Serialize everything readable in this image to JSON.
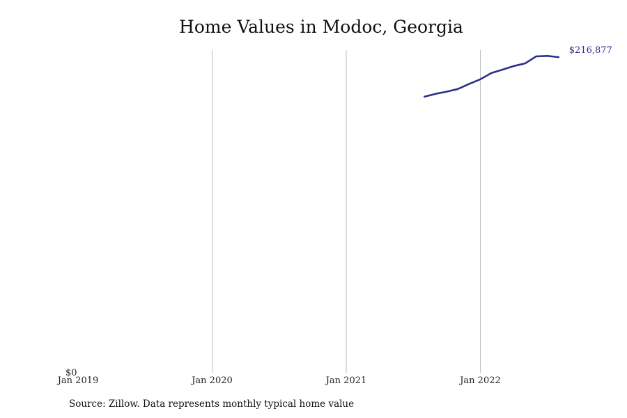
{
  "chart_data": {
    "type": "line",
    "title": "Home Values in Modoc, Georgia",
    "xlabel": "",
    "ylabel": "",
    "x_ticks": [
      "Jan 2019",
      "Jan 2020",
      "Jan 2021",
      "Jan 2022"
    ],
    "y_tick_labels": [
      "$0"
    ],
    "ylim": [
      0,
      216877
    ],
    "grid": "vertical",
    "legend": "none",
    "series": [
      {
        "color": "#2e2e8c",
        "x": [
          "2021-08",
          "2021-09",
          "2021-10",
          "2021-11",
          "2021-12",
          "2022-01",
          "2022-02",
          "2022-03",
          "2022-04",
          "2022-05",
          "2022-06",
          "2022-07",
          "2022-08"
        ],
        "values": [
          185600,
          187500,
          189000,
          190800,
          194200,
          197300,
          201500,
          203800,
          206200,
          208000,
          212700,
          213000,
          212200
        ],
        "end_label": "$216,877"
      }
    ],
    "source": "Source: Zillow. Data represents monthly typical home value"
  }
}
